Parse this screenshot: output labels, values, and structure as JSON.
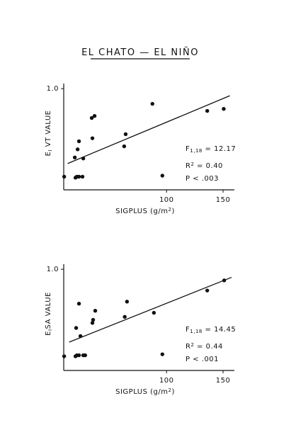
{
  "title": "EL CHATO — EL NIÑO",
  "chart_data": [
    {
      "type": "scatter",
      "y_label": [
        {
          "text": "E"
        },
        {
          "text": "I",
          "sub": true
        },
        {
          "text": " VT  VALUE"
        }
      ],
      "x_label": [
        {
          "text": "SIGPLUS  (g/m"
        },
        {
          "text": "2",
          "sup": true
        },
        {
          "text": ")"
        }
      ],
      "xlim": [
        9,
        160
      ],
      "xticks": [
        100,
        150
      ],
      "ylim": [
        0,
        1.05
      ],
      "yticks": [
        {
          "value": 1,
          "label": "1.0"
        }
      ],
      "color": "#111",
      "x": [
        9.4,
        19.4,
        20.6,
        22.5,
        25.6,
        18.8,
        21.3,
        22.5,
        26.3,
        33.8,
        36.3,
        34.4,
        62.5,
        63.8,
        87.5,
        96.3,
        136,
        150.6
      ],
      "values": [
        0.13,
        0.12,
        0.13,
        0.13,
        0.13,
        0.32,
        0.4,
        0.48,
        0.31,
        0.71,
        0.73,
        0.51,
        0.43,
        0.55,
        0.85,
        0.14,
        0.78,
        0.8
      ],
      "fit": {
        "x": [
          12.5,
          156
        ],
        "y": [
          0.26,
          0.93
        ]
      },
      "annotations": [
        [
          {
            "text": "F"
          },
          {
            "text": "1,18",
            "sub": true
          },
          {
            "text": " = 12.17"
          }
        ],
        [
          {
            "text": "R"
          },
          {
            "text": "2",
            "sup": true
          },
          {
            "text": " = 0.40"
          }
        ],
        [
          {
            "text": "P <  .003"
          }
        ]
      ]
    },
    {
      "type": "scatter",
      "y_label": [
        {
          "text": "E"
        },
        {
          "text": "I",
          "sub": true
        },
        {
          "text": "SA  VALUE"
        }
      ],
      "x_label": [
        {
          "text": "SIGPLUS  (g/m"
        },
        {
          "text": "2",
          "sup": true
        },
        {
          "text": ")"
        }
      ],
      "xlim": [
        9,
        160
      ],
      "xticks": [
        100,
        150
      ],
      "ylim": [
        0,
        1.05
      ],
      "yticks": [
        {
          "value": 1,
          "label": "1.0"
        }
      ],
      "color": "#111",
      "x": [
        9.4,
        19.4,
        20.6,
        22.5,
        26.3,
        20,
        22.5,
        23.8,
        28,
        34.4,
        35,
        36.9,
        63,
        65,
        88.8,
        96.3,
        136,
        151
      ],
      "values": [
        0.14,
        0.14,
        0.15,
        0.15,
        0.15,
        0.42,
        0.66,
        0.34,
        0.15,
        0.47,
        0.5,
        0.59,
        0.53,
        0.68,
        0.57,
        0.16,
        0.79,
        0.89
      ],
      "fit": {
        "x": [
          13.8,
          157.5
        ],
        "y": [
          0.28,
          0.92
        ]
      },
      "annotations": [
        [
          {
            "text": "F"
          },
          {
            "text": "1,18",
            "sub": true
          },
          {
            "text": " = 14.45"
          }
        ],
        [
          {
            "text": "R"
          },
          {
            "text": "2",
            "sup": true
          },
          {
            "text": " = 0.44"
          }
        ],
        [
          {
            "text": "P <  .001"
          }
        ]
      ]
    }
  ]
}
